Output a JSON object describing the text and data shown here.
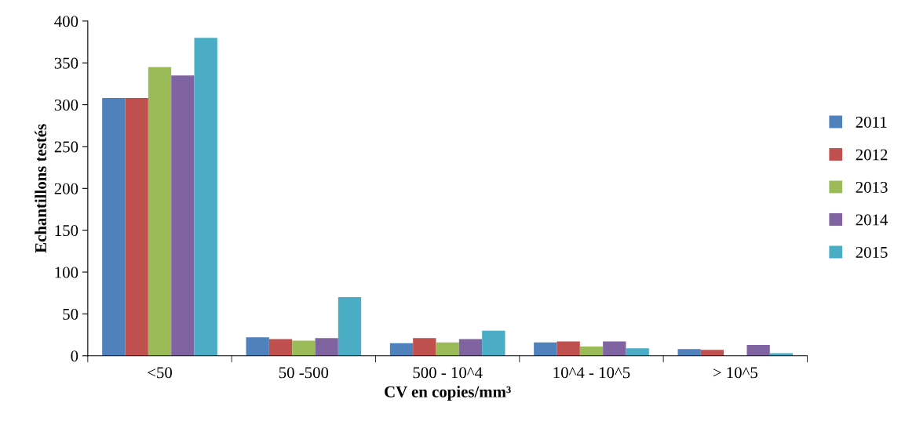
{
  "chart_data": {
    "type": "bar",
    "xlabel": "CV en copies/mm³",
    "ylabel": "Echantillons testés",
    "categories": [
      "<50",
      "50 -500",
      "500 - 10^4",
      "10^4 - 10^5",
      "> 10^5"
    ],
    "series": [
      {
        "name": "2011",
        "color": "#4f81bd",
        "values": [
          308,
          22,
          15,
          16,
          8
        ]
      },
      {
        "name": "2012",
        "color": "#c0504d",
        "values": [
          308,
          20,
          21,
          17,
          7
        ]
      },
      {
        "name": "2013",
        "color": "#9bbb59",
        "values": [
          345,
          18,
          16,
          11,
          null
        ]
      },
      {
        "name": "2014",
        "color": "#8064a2",
        "values": [
          335,
          21,
          20,
          17,
          13
        ]
      },
      {
        "name": "2015",
        "color": "#4bacc6",
        "values": [
          380,
          70,
          30,
          9,
          3
        ]
      }
    ],
    "ylim": [
      0,
      400
    ],
    "yticks": [
      0,
      50,
      100,
      150,
      200,
      250,
      300,
      350,
      400
    ],
    "grid": false,
    "legend": "right"
  }
}
